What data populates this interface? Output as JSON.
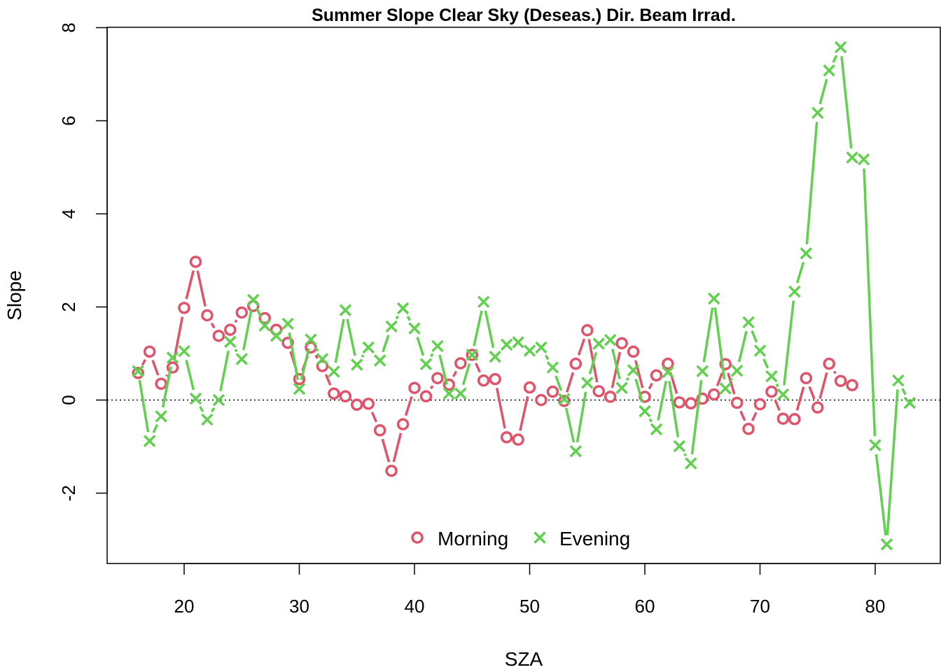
{
  "chart_data": {
    "type": "line",
    "title": "Summer Slope Clear Sky (Deseas.) Dir. Beam Irrad.",
    "xlabel": "SZA",
    "ylabel": "Slope",
    "xlim": [
      15,
      84
    ],
    "ylim": [
      -3.5,
      8
    ],
    "xticks": [
      20,
      30,
      40,
      50,
      60,
      70,
      80
    ],
    "yticks": [
      -2,
      0,
      2,
      4,
      6,
      8
    ],
    "reference_line": {
      "y": 0,
      "style": "dotted"
    },
    "legend": {
      "position": "bottom-center",
      "orientation": "horizontal"
    },
    "series": [
      {
        "name": "Morning",
        "color": "#DF536B",
        "marker": "circle",
        "x": [
          16,
          17,
          18,
          19,
          20,
          21,
          22,
          23,
          24,
          25,
          26,
          27,
          28,
          29,
          30,
          31,
          32,
          33,
          34,
          35,
          36,
          37,
          38,
          39,
          40,
          41,
          42,
          43,
          44,
          45,
          46,
          47,
          48,
          49,
          50,
          51,
          52,
          53,
          54,
          55,
          56,
          57,
          58,
          59,
          60,
          61,
          62,
          63,
          64,
          65,
          66,
          67,
          68,
          69,
          70,
          71,
          72,
          73,
          74,
          75,
          76,
          77,
          78
        ],
        "y": [
          0.58,
          1.04,
          0.35,
          0.7,
          1.98,
          2.97,
          1.82,
          1.38,
          1.51,
          1.88,
          2.02,
          1.76,
          1.51,
          1.23,
          0.45,
          1.13,
          0.73,
          0.14,
          0.08,
          -0.1,
          -0.08,
          -0.65,
          -1.52,
          -0.52,
          0.26,
          0.08,
          0.47,
          0.33,
          0.79,
          0.97,
          0.42,
          0.45,
          -0.8,
          -0.85,
          0.27,
          0.0,
          0.18,
          -0.02,
          0.78,
          1.5,
          0.19,
          0.07,
          1.22,
          1.04,
          0.07,
          0.53,
          0.78,
          -0.05,
          -0.07,
          0.03,
          0.12,
          0.77,
          -0.06,
          -0.62,
          -0.09,
          0.18,
          -0.4,
          -0.41,
          0.47,
          -0.16,
          0.78,
          0.41,
          0.32
        ]
      },
      {
        "name": "Evening",
        "color": "#61D04F",
        "marker": "cross",
        "x": [
          16,
          17,
          18,
          19,
          20,
          21,
          22,
          23,
          24,
          25,
          26,
          27,
          28,
          29,
          30,
          31,
          32,
          33,
          34,
          35,
          36,
          37,
          38,
          39,
          40,
          41,
          42,
          43,
          44,
          45,
          46,
          47,
          48,
          49,
          50,
          51,
          52,
          53,
          54,
          55,
          56,
          57,
          58,
          59,
          60,
          61,
          62,
          63,
          64,
          65,
          66,
          67,
          68,
          69,
          70,
          71,
          72,
          73,
          74,
          75,
          76,
          77,
          78,
          79,
          80,
          81,
          82,
          83
        ],
        "y": [
          0.62,
          -0.88,
          -0.35,
          0.91,
          1.05,
          0.03,
          -0.42,
          0.0,
          1.25,
          0.88,
          2.15,
          1.6,
          1.38,
          1.64,
          0.24,
          1.3,
          0.88,
          0.61,
          1.93,
          0.76,
          1.13,
          0.85,
          1.58,
          1.97,
          1.54,
          0.77,
          1.16,
          0.14,
          0.14,
          0.97,
          2.11,
          0.93,
          1.19,
          1.24,
          1.06,
          1.13,
          0.7,
          0.02,
          -1.1,
          0.37,
          1.21,
          1.29,
          0.26,
          0.64,
          -0.24,
          -0.63,
          0.6,
          -0.99,
          -1.36,
          0.62,
          2.18,
          0.25,
          0.63,
          1.67,
          1.06,
          0.51,
          0.12,
          2.33,
          3.15,
          6.17,
          7.08,
          7.58,
          5.21,
          5.17,
          -0.97,
          -3.1,
          0.42,
          -0.06
        ]
      }
    ]
  }
}
